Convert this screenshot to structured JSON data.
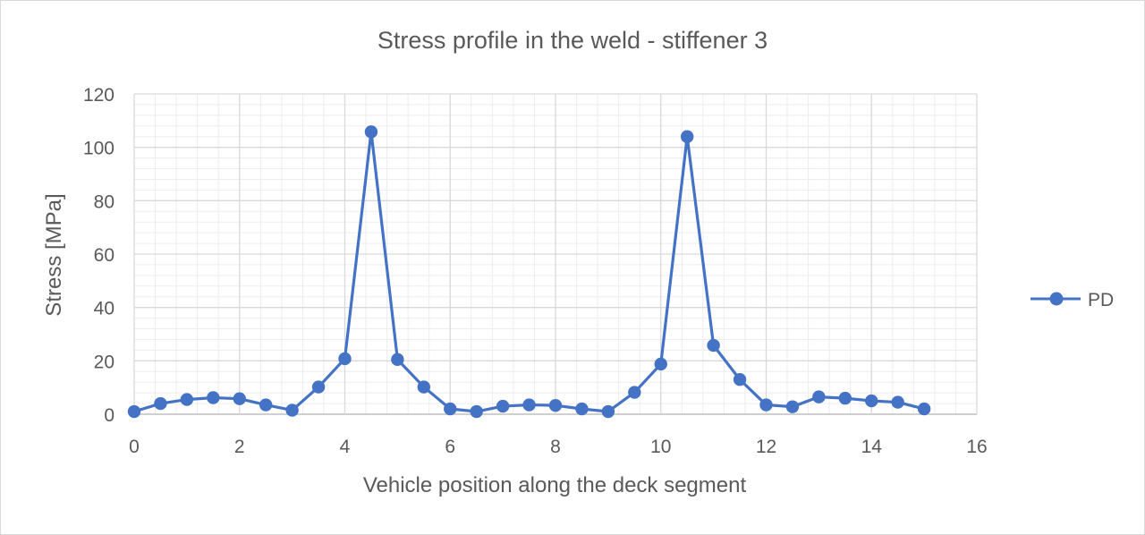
{
  "chart_data": {
    "type": "line",
    "title": "Stress profile in the weld - stiffener 3",
    "xlabel": "Vehicle position along the deck segment",
    "ylabel": "Stress [MPa]",
    "xlim": [
      0,
      16
    ],
    "ylim": [
      0,
      120
    ],
    "x_ticks": [
      0,
      2,
      4,
      6,
      8,
      10,
      12,
      14,
      16
    ],
    "y_ticks": [
      0,
      20,
      40,
      60,
      80,
      100,
      120
    ],
    "grid": {
      "major": true,
      "minor": true
    },
    "legend_position": "right",
    "series": [
      {
        "name": "PD",
        "color": "#4472C4",
        "marker": "circle",
        "x": [
          0,
          0.5,
          1,
          1.5,
          2,
          2.5,
          3,
          3.5,
          4,
          4.5,
          5,
          5.5,
          6,
          6.5,
          7,
          7.5,
          8,
          8.5,
          9,
          9.5,
          10,
          10.5,
          11,
          11.5,
          12,
          12.5,
          13,
          13.5,
          14,
          14.5,
          15
        ],
        "y": [
          1.0,
          4.0,
          5.5,
          6.2,
          5.8,
          3.5,
          1.5,
          10.2,
          20.8,
          105.8,
          20.5,
          10.2,
          2.0,
          1.0,
          3.0,
          3.5,
          3.3,
          2.0,
          1.0,
          8.2,
          18.8,
          104.0,
          25.8,
          13.0,
          3.5,
          2.8,
          6.5,
          6.0,
          5.0,
          4.5,
          2.0
        ]
      }
    ]
  }
}
